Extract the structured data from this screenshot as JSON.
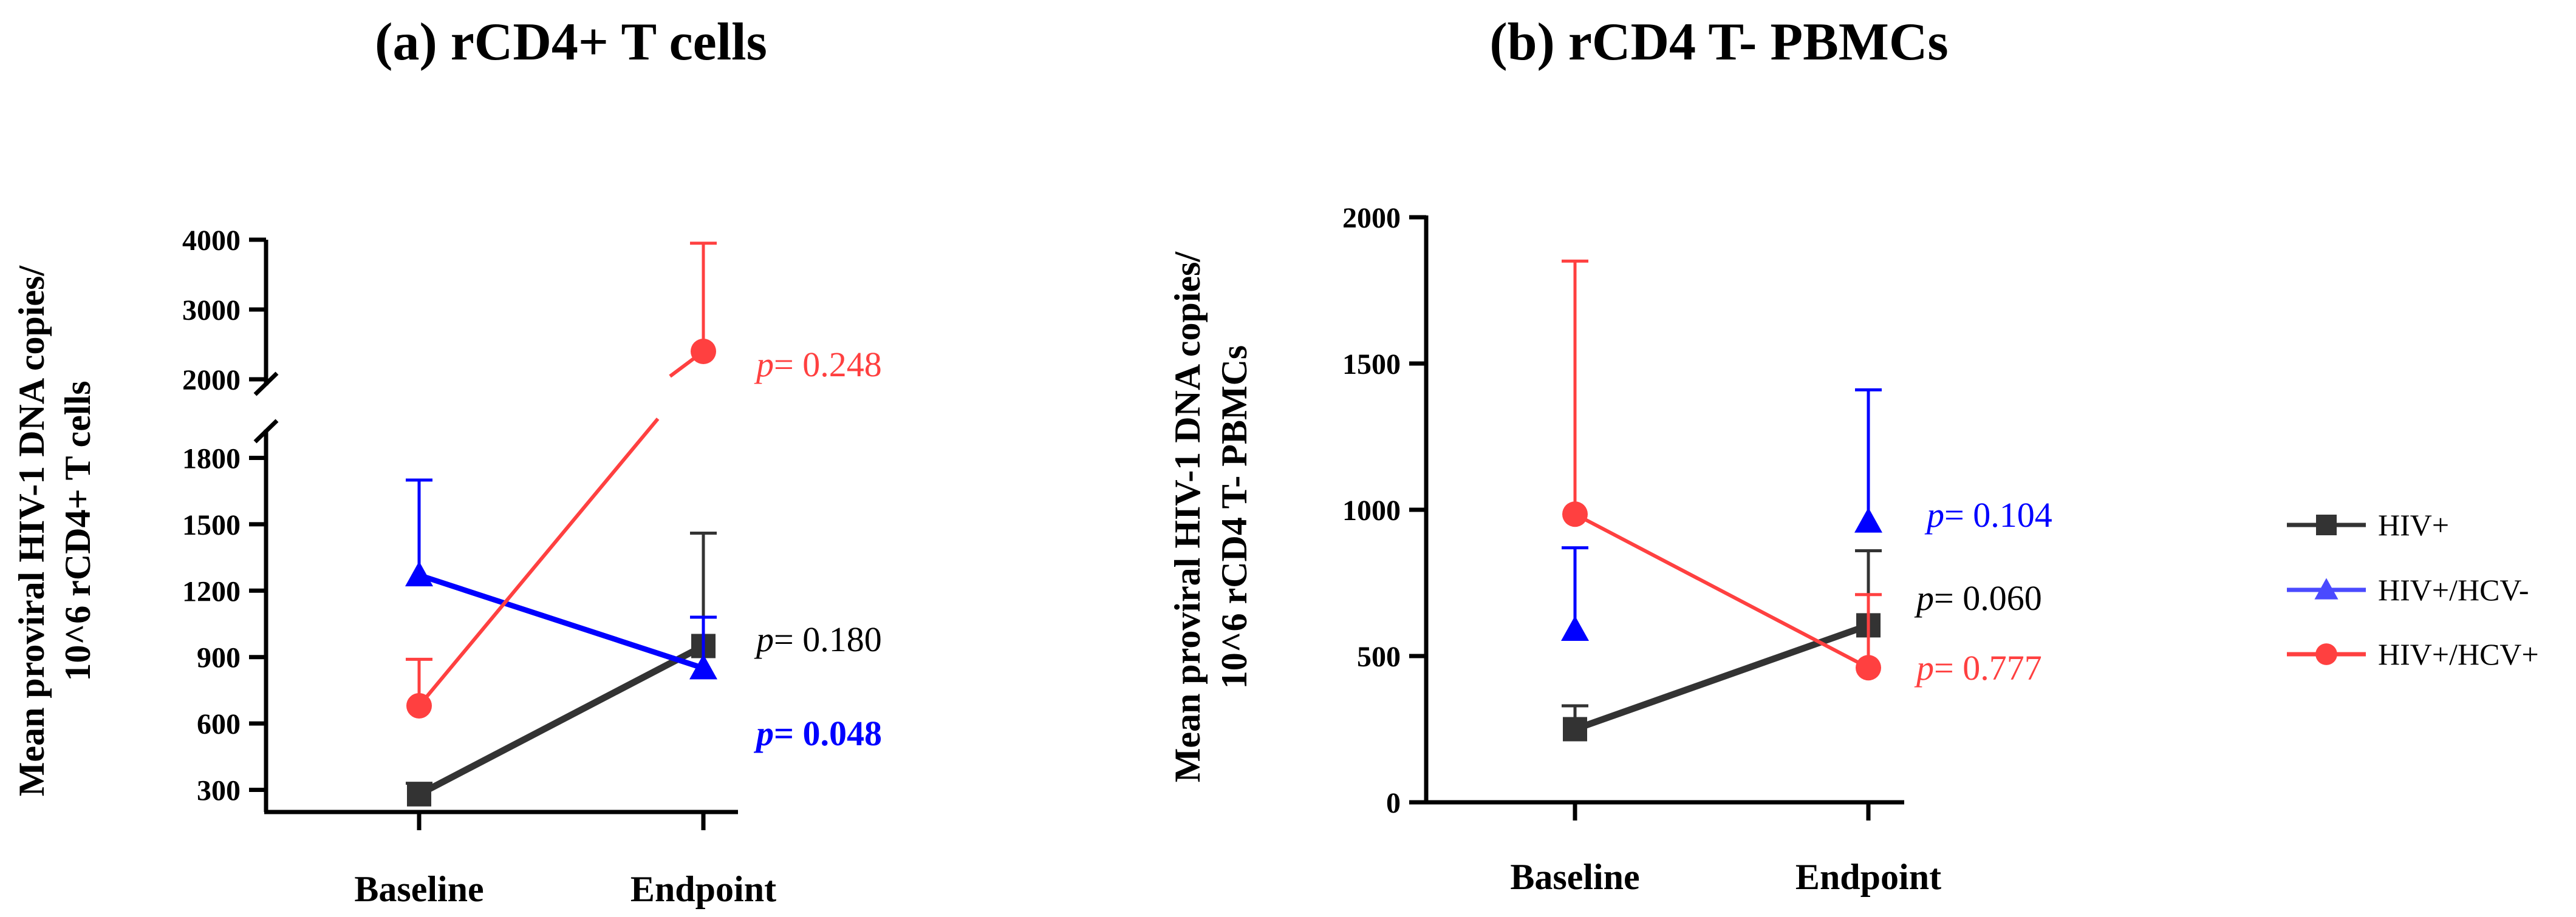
{
  "chart_data": [
    {
      "type": "line",
      "title": "(a) rCD4+ T cells",
      "ylabel_lines": [
        "Mean proviral HIV-1 DNA copies/",
        "10^6 rCD4+ T cells"
      ],
      "categories": [
        "Baseline",
        "Endpoint"
      ],
      "y_axis_break": true,
      "ylim_lower": [
        200,
        1900
      ],
      "yticks_lower": [
        "300",
        "600",
        "900",
        "1200",
        "1500",
        "1800"
      ],
      "ylim_upper": [
        2000,
        4000
      ],
      "yticks_upper": [
        "2000",
        "3000",
        "4000"
      ],
      "series": [
        {
          "name": "HIV+",
          "color": "#333333",
          "marker": "square",
          "values": [
            280,
            950
          ],
          "error_upper": [
            330,
            1460
          ]
        },
        {
          "name": "HIV+/HCV-",
          "color": "#0000ff",
          "marker": "triangle",
          "values": [
            1270,
            850
          ],
          "error_upper": [
            1700,
            1080
          ]
        },
        {
          "name": "HIV+/HCV+",
          "color": "#ff4040",
          "marker": "circle",
          "values": [
            680,
            2400
          ],
          "error_upper": [
            890,
            3950
          ]
        }
      ],
      "annotations": [
        {
          "prefix": "p",
          "text": "= 0.248",
          "color": "#ff4040",
          "bold": false
        },
        {
          "prefix": "p",
          "text": "= 0.180",
          "color": "#000000",
          "bold": false
        },
        {
          "prefix": "p",
          "text": "= 0.048",
          "color": "#0000ff",
          "bold": true
        }
      ]
    },
    {
      "type": "line",
      "title": "(b) rCD4 T- PBMCs",
      "ylabel_lines": [
        "Mean proviral HIV-1 DNA copies/",
        "10^6 rCD4 T- PBMCs"
      ],
      "categories": [
        "Baseline",
        "Endpoint"
      ],
      "ylim": [
        0,
        2000
      ],
      "yticks": [
        "0",
        "500",
        "1000",
        "1500",
        "2000"
      ],
      "series": [
        {
          "name": "HIV+",
          "color": "#333333",
          "marker": "square",
          "values": [
            250,
            605
          ],
          "error_upper": [
            330,
            860
          ],
          "connected": true
        },
        {
          "name": "HIV+/HCV-",
          "color": "#0000ff",
          "marker": "triangle",
          "values": [
            590,
            960
          ],
          "error_upper": [
            870,
            1410
          ],
          "connected": false
        },
        {
          "name": "HIV+/HCV+",
          "color": "#ff4040",
          "marker": "circle",
          "values": [
            985,
            460
          ],
          "error_upper": [
            1850,
            710
          ],
          "connected": true
        }
      ],
      "annotations": [
        {
          "prefix": "p",
          "text": "= 0.104",
          "color": "#0000ff",
          "bold": false
        },
        {
          "prefix": "p",
          "text": "= 0.060",
          "color": "#000000",
          "bold": false
        },
        {
          "prefix": "p",
          "text": "= 0.777",
          "color": "#ff4040",
          "bold": false
        }
      ]
    }
  ],
  "legend": [
    {
      "label": "HIV+",
      "color": "#333333",
      "marker": "square"
    },
    {
      "label": "HIV+/HCV-",
      "color": "#4a4aff",
      "marker": "triangle"
    },
    {
      "label": "HIV+/HCV+",
      "color": "#ff4040",
      "marker": "circle"
    }
  ]
}
